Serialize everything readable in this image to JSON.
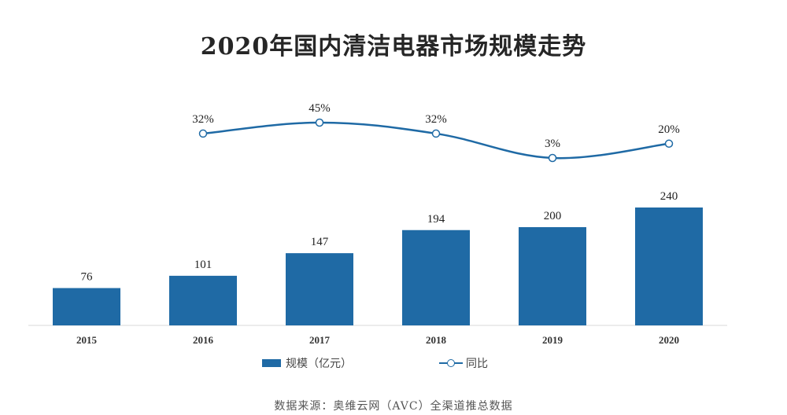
{
  "chart_data": {
    "type": "bar",
    "title": "2020年国内清洁电器市场规模走势",
    "categories": [
      "2015",
      "2016",
      "2017",
      "2018",
      "2019",
      "2020"
    ],
    "series": [
      {
        "name": "规模（亿元）",
        "type": "bar",
        "values": [
          76,
          101,
          147,
          194,
          200,
          240
        ],
        "color": "#1f6aa5"
      },
      {
        "name": "同比",
        "type": "line",
        "values": [
          null,
          32,
          45,
          32,
          3,
          20
        ],
        "value_labels": [
          "",
          "32%",
          "45%",
          "32%",
          "3%",
          "20%"
        ],
        "color": "#1f6aa5"
      }
    ],
    "grid": false,
    "legend": "bottom-center"
  },
  "source": "数据来源：奥维云网（AVC）全渠道推总数据"
}
